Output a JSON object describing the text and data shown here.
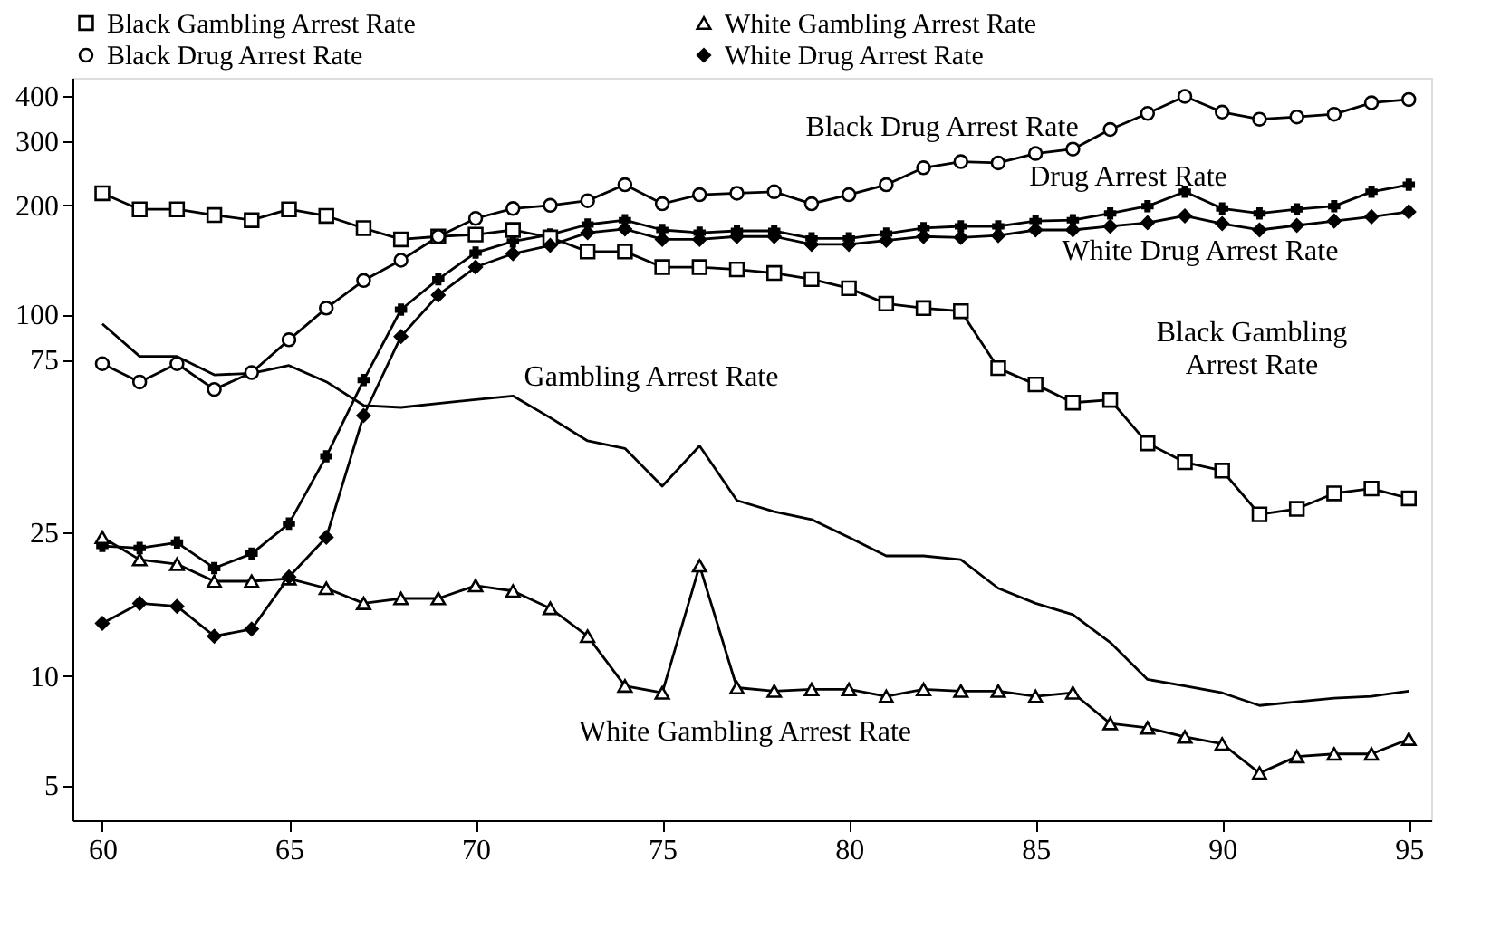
{
  "chart_data": {
    "type": "line",
    "x": [
      60,
      61,
      62,
      63,
      64,
      65,
      66,
      67,
      68,
      69,
      70,
      71,
      72,
      73,
      74,
      75,
      76,
      77,
      78,
      79,
      80,
      81,
      82,
      83,
      84,
      85,
      86,
      87,
      88,
      89,
      90,
      91,
      92,
      93,
      94,
      95
    ],
    "series": [
      {
        "name": "Black Gambling Arrest Rate",
        "color": "#000000",
        "marker": "square",
        "values": [
          216,
          195,
          195,
          188,
          182,
          195,
          187,
          173,
          161,
          164,
          166,
          171,
          163,
          149,
          149,
          135,
          135,
          133,
          130,
          125,
          118,
          107,
          104,
          102,
          71,
          64,
          57,
          58,
          44,
          39,
          37,
          28,
          29,
          32,
          33,
          31
        ]
      },
      {
        "name": "Black Drug Arrest Rate",
        "color": "#000000",
        "marker": "circle",
        "values": [
          73,
          65,
          73,
          62,
          69,
          85,
          104,
          124,
          141,
          164,
          184,
          196,
          200,
          206,
          228,
          202,
          214,
          216,
          218,
          202,
          214,
          228,
          254,
          264,
          262,
          278,
          286,
          324,
          359,
          400,
          362,
          346,
          351,
          357,
          384,
          392
        ]
      },
      {
        "name": "White Gambling Arrest Rate",
        "color": "#000000",
        "marker": "triangle",
        "values": [
          24.2,
          21.0,
          20.4,
          18.3,
          18.3,
          18.6,
          17.5,
          15.9,
          16.4,
          16.4,
          17.8,
          17.2,
          15.4,
          12.9,
          9.4,
          9.0,
          20.2,
          9.3,
          9.1,
          9.2,
          9.2,
          8.8,
          9.2,
          9.1,
          9.1,
          8.8,
          9.0,
          7.4,
          7.2,
          6.8,
          6.5,
          5.4,
          6.0,
          6.1,
          6.1,
          6.7
        ]
      },
      {
        "name": "White Drug Arrest Rate",
        "color": "#000000",
        "marker": "diamond",
        "values": [
          14.0,
          15.9,
          15.6,
          12.9,
          13.5,
          18.8,
          24.2,
          52.5,
          86.8,
          113,
          135,
          147,
          155,
          168,
          172,
          161,
          161,
          164,
          164,
          156,
          156,
          160,
          164,
          163,
          165,
          171,
          171,
          175,
          179,
          187,
          178,
          171,
          176,
          181,
          186,
          192
        ]
      },
      {
        "color": "#000000",
        "marker": "cross",
        "values": [
          22.9,
          22.6,
          23.4,
          19.9,
          21.8,
          26.4,
          40.5,
          65.8,
          103,
          125,
          148,
          159,
          166,
          177,
          182,
          171,
          168,
          170,
          170,
          162,
          162,
          167,
          173,
          175,
          175,
          181,
          182,
          190,
          199,
          218,
          196,
          190,
          195,
          199,
          218,
          228
        ]
      },
      {
        "color": "#000000",
        "marker": "none",
        "values": [
          94.1,
          76.5,
          76.5,
          68.0,
          68.7,
          72.2,
          65.1,
          56.0,
          55.3,
          56.7,
          58.1,
          59.5,
          51.8,
          44.7,
          42.6,
          33.5,
          43.3,
          30.6,
          28.5,
          27.1,
          24.2,
          21.5,
          21.5,
          21.0,
          17.5,
          15.9,
          14.8,
          12.4,
          9.8,
          9.4,
          9.0,
          8.3,
          8.5,
          8.7,
          8.8,
          9.1
        ]
      }
    ],
    "annotations": [
      "Black Drug Arrest Rate",
      "Drug Arrest Rate",
      "White Drug Arrest Rate",
      "Black Gambling\nArrest Rate",
      "Gambling Arrest Rate",
      "White Gambling Arrest Rate"
    ],
    "xlim": [
      59.2,
      95.6
    ],
    "xticks": [
      60,
      65,
      70,
      75,
      80,
      85,
      90,
      95
    ],
    "ylim": [
      4,
      450
    ],
    "yticks": [
      5,
      10,
      25,
      75,
      100,
      200,
      300,
      400
    ],
    "log": true,
    "grid": false,
    "line_style": "solid",
    "legend": "top"
  }
}
